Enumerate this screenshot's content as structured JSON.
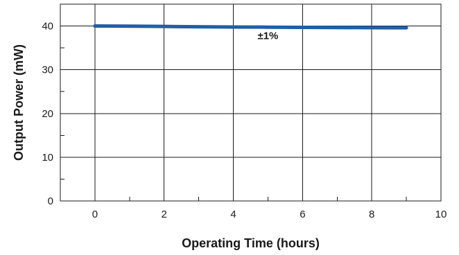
{
  "chart_data": {
    "type": "line",
    "xlabel": "Operating Time (hours)",
    "ylabel": "Output Power (mW)",
    "xlim": [
      -1,
      10
    ],
    "ylim": [
      0,
      45
    ],
    "x_ticks": [
      "0",
      "2",
      "4",
      "6",
      "8",
      "10"
    ],
    "y_ticks": [
      "0",
      "10",
      "20",
      "30",
      "40"
    ],
    "grid": true,
    "series": [
      {
        "color": "#1f5fa8",
        "x": [
          0,
          1,
          2,
          3,
          4,
          5,
          6,
          7,
          8,
          9
        ],
        "y": [
          40.0,
          39.96,
          39.9,
          39.84,
          39.78,
          39.74,
          39.7,
          39.66,
          39.62,
          39.6
        ]
      }
    ],
    "annotations": [
      {
        "text": "±1%",
        "x": 5,
        "y": 37
      }
    ]
  }
}
